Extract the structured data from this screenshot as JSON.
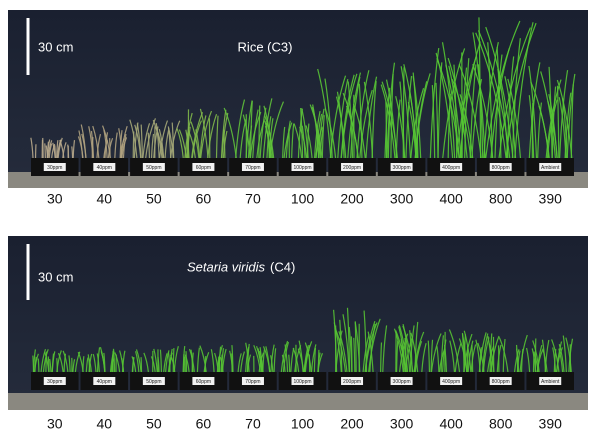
{
  "panels": [
    {
      "title": "Rice (C3)",
      "scale_label": "30 cm",
      "tray_labels": [
        "30ppm",
        "40ppm",
        "50ppm",
        "60ppm",
        "70ppm",
        "100ppm",
        "200ppm",
        "300ppm",
        "400ppm",
        "800ppm",
        "Ambient"
      ],
      "concentrations": [
        30,
        40,
        50,
        60,
        70,
        100,
        200,
        300,
        400,
        800,
        390
      ]
    },
    {
      "title_species": "Setaria viridis",
      "title_suffix": "(C4)",
      "scale_label": "30 cm",
      "tray_labels": [
        "30ppm",
        "40ppm",
        "50ppm",
        "60ppm",
        "70ppm",
        "100ppm",
        "200ppm",
        "300ppm",
        "400ppm",
        "800ppm",
        "Ambient"
      ],
      "concentrations": [
        30,
        40,
        50,
        60,
        70,
        100,
        200,
        300,
        400,
        800,
        390
      ]
    }
  ]
}
